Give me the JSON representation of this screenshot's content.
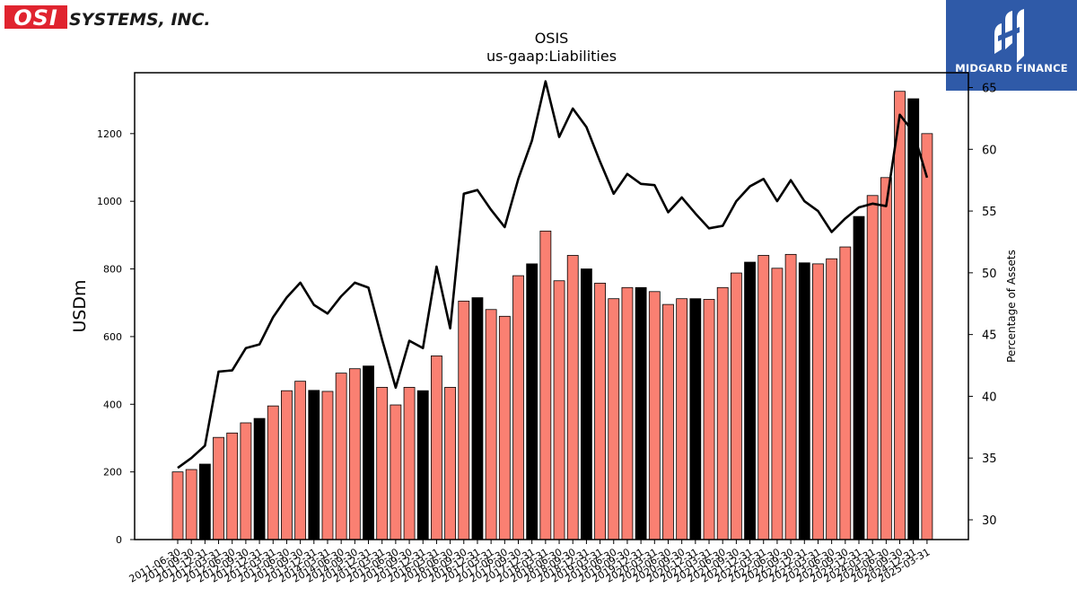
{
  "company_logo": {
    "text": "OSI SYSTEMS, INC.",
    "mark": "OSI",
    "rest": "SYSTEMS, INC."
  },
  "badge": {
    "text": "MIDGARD FINANCE",
    "icon": "midgard-logo-icon",
    "color": "#2f5aa8"
  },
  "chart_data": {
    "type": "bar+line",
    "title": "OSIS",
    "subtitle": "us-gaap:Liabilities",
    "ylabel": "USDm",
    "y2label": "Percentage of Assets",
    "ylim": [
      0,
      1380
    ],
    "y2lim": [
      28.4,
      66.2
    ],
    "yticks": [
      0,
      200,
      400,
      600,
      800,
      1000,
      1200
    ],
    "y2ticks": [
      30,
      35,
      40,
      45,
      50,
      55,
      60,
      65
    ],
    "categories": [
      "2011-06-30",
      "2011-09-30",
      "2011-12-31",
      "2012-03-31",
      "2012-06-30",
      "2012-09-30",
      "2012-12-31",
      "2013-03-31",
      "2013-06-30",
      "2013-09-30",
      "2013-12-31",
      "2014-03-31",
      "2014-06-30",
      "2014-09-30",
      "2014-12-31",
      "2015-03-31",
      "2015-06-30",
      "2015-09-30",
      "2015-12-31",
      "2016-03-31",
      "2016-06-30",
      "2016-09-30",
      "2016-12-31",
      "2017-03-31",
      "2017-06-30",
      "2017-09-30",
      "2017-12-31",
      "2018-03-31",
      "2018-06-30",
      "2018-09-30",
      "2018-12-31",
      "2019-03-31",
      "2019-06-30",
      "2019-09-30",
      "2019-12-31",
      "2020-03-31",
      "2020-06-30",
      "2020-09-30",
      "2020-12-31",
      "2021-03-31",
      "2021-06-30",
      "2021-09-30",
      "2021-12-31",
      "2022-03-31",
      "2022-06-30",
      "2022-09-30",
      "2022-12-31",
      "2023-03-31",
      "2023-06-30",
      "2023-09-30",
      "2023-12-31",
      "2024-03-31",
      "2024-06-30",
      "2024-09-30",
      "2024-12-31",
      "2025-03-31"
    ],
    "liabilities": [
      200,
      207,
      223,
      302,
      315,
      345,
      358,
      395,
      440,
      468,
      441,
      438,
      492,
      505,
      513,
      450,
      398,
      450,
      440,
      543,
      450,
      705,
      715,
      680,
      660,
      780,
      815,
      912,
      765,
      840,
      800,
      758,
      712,
      745,
      745,
      733,
      695,
      712,
      712,
      710,
      745,
      788,
      820,
      840,
      802,
      843,
      818,
      815,
      830,
      865,
      955,
      1017,
      1070,
      1325,
      1303,
      1200
    ],
    "pct_of_assets": [
      34.2,
      35.0,
      36.0,
      42.0,
      42.1,
      43.9,
      44.2,
      46.4,
      48.0,
      49.2,
      47.4,
      46.7,
      48.1,
      49.2,
      48.8,
      44.6,
      40.7,
      44.5,
      43.9,
      50.5,
      45.5,
      56.4,
      56.7,
      55.1,
      53.7,
      57.6,
      60.7,
      65.5,
      61.0,
      63.3,
      61.8,
      59.0,
      56.4,
      58.0,
      57.2,
      57.1,
      54.9,
      56.1,
      54.8,
      53.6,
      53.8,
      55.8,
      57.0,
      57.6,
      55.8,
      57.5,
      55.8,
      55.0,
      53.3,
      54.4,
      55.3,
      55.6,
      55.4,
      62.8,
      61.4,
      57.7
    ],
    "fiscal_year_end_indices": [
      2,
      6,
      10,
      14,
      18,
      22,
      26,
      30,
      34,
      38,
      42,
      46,
      50,
      54
    ],
    "colors": {
      "bar": "#fa8072",
      "bar_fy": "#000000",
      "line": "#000000"
    }
  }
}
